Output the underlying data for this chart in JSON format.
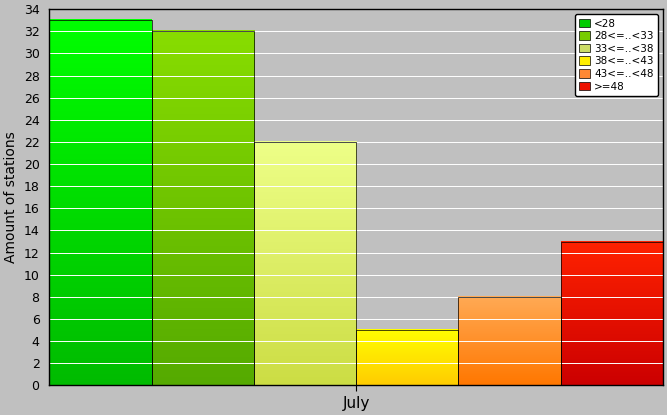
{
  "bars": [
    {
      "value": 33,
      "color_top": "#00FF00",
      "color_bottom": "#00BB00",
      "label": "<28",
      "legend_color": "#00CC00"
    },
    {
      "value": 32,
      "color_top": "#88DD00",
      "color_bottom": "#55AA00",
      "label": "28<=..<33",
      "legend_color": "#77CC00"
    },
    {
      "value": 22,
      "color_top": "#EEFF88",
      "color_bottom": "#CCDD44",
      "label": "33<=..<38",
      "legend_color": "#CCDD66"
    },
    {
      "value": 5,
      "color_top": "#FFFF00",
      "color_bottom": "#FFCC00",
      "label": "38<=..<43",
      "legend_color": "#FFEE00"
    },
    {
      "value": 8,
      "color_top": "#FFAA55",
      "color_bottom": "#FF7700",
      "label": "43<=..<48",
      "legend_color": "#FF8833"
    },
    {
      "value": 13,
      "color_top": "#FF2200",
      "color_bottom": "#CC0000",
      "label": ">=48",
      "legend_color": "#EE1100"
    }
  ],
  "xlabel": "July",
  "ylabel": "Amount of stations",
  "ylim": [
    0,
    34
  ],
  "yticks": [
    0,
    2,
    4,
    6,
    8,
    10,
    12,
    14,
    16,
    18,
    20,
    22,
    24,
    26,
    28,
    30,
    32,
    34
  ],
  "background_color": "#C0C0C0",
  "plot_bg_color": "#C0C0C0",
  "grid_color": "#AAAAAA",
  "figsize": [
    6.67,
    4.15
  ],
  "dpi": 100
}
